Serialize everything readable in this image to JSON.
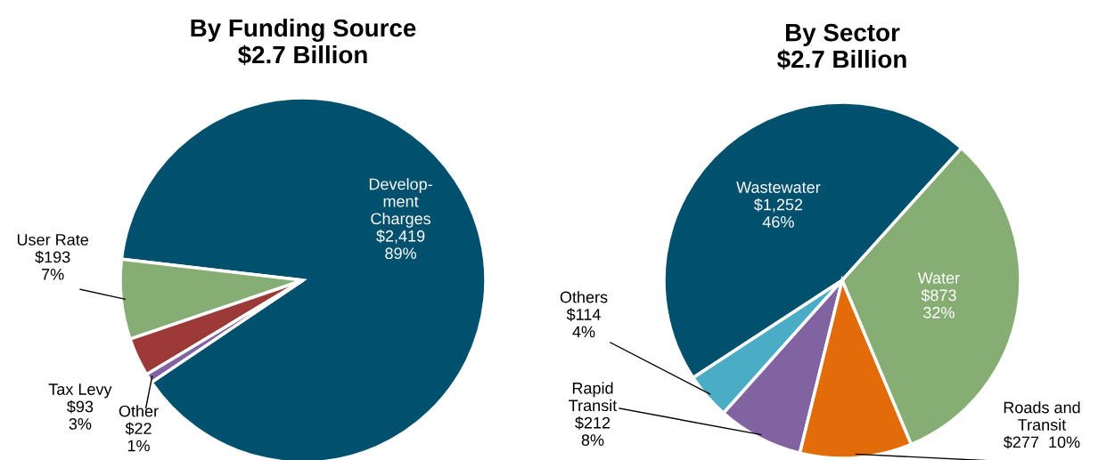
{
  "chart_data": [
    {
      "type": "pie",
      "title": "By Funding Source\n$2.7 Billion",
      "categories": [
        "Develop-\nment\nCharges",
        "User Rate",
        "Tax Levy",
        "Other"
      ],
      "values": [
        2419,
        193,
        93,
        22
      ],
      "value_labels": [
        "$2,419\n89%",
        "$193\n7%",
        "$93\n3%",
        "$22\n1%"
      ],
      "colors": [
        "#00506e",
        "#86ad73",
        "#9b3a36",
        "#8063a0"
      ]
    },
    {
      "type": "pie",
      "title": "By Sector\n$2.7 Billion",
      "categories": [
        "Wastewater",
        "Others",
        "Rapid\nTransit",
        "Roads and\nTransit",
        "Water"
      ],
      "values": [
        1252,
        114,
        212,
        277,
        873
      ],
      "value_labels": [
        "$1,252\n46%",
        "$114\n4%",
        "$212\n8%",
        "$277  10%",
        "$873\n32%"
      ],
      "colors": [
        "#00506e",
        "#4bacc6",
        "#8063a0",
        "#e36c0a",
        "#86ad73"
      ]
    }
  ]
}
